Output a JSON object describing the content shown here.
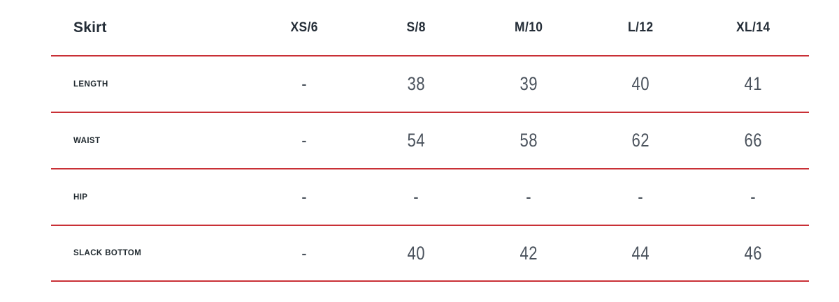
{
  "chart_data": {
    "type": "table",
    "title": "Skirt",
    "columns": [
      "XS/6",
      "S/8",
      "M/10",
      "L/12",
      "XL/14"
    ],
    "rows": [
      {
        "label": "LENGTH",
        "values": [
          "-",
          "38",
          "39",
          "40",
          "41"
        ]
      },
      {
        "label": "WAIST",
        "values": [
          "-",
          "54",
          "58",
          "62",
          "66"
        ]
      },
      {
        "label": "HIP",
        "values": [
          "-",
          "-",
          "-",
          "-",
          "-"
        ]
      },
      {
        "label": "SLACK BOTTOM",
        "values": [
          "-",
          "40",
          "42",
          "44",
          "46"
        ]
      }
    ]
  },
  "colors": {
    "divider": "#c93036",
    "header_text": "#242d37",
    "label_text": "#20292f",
    "value_text": "#4a525c"
  }
}
